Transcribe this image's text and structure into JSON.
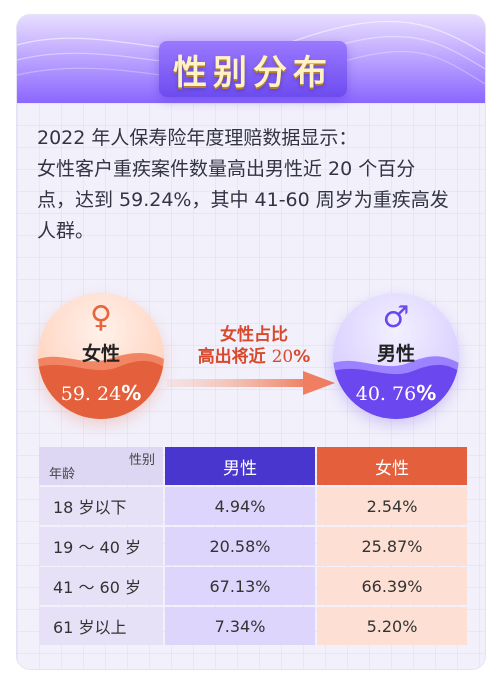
{
  "title": "性别分布",
  "intro": {
    "line1": "2022 年人保寿险年度理赔数据显示：",
    "line2": "女性客户重疾案件数量高出男性近  20  个百分",
    "line3": "点，达到 59.24%，其中 41-60 周岁为重疾高发",
    "line4": "人群。"
  },
  "female": {
    "icon": "♀",
    "label": "女性",
    "pct_num": "59. 24",
    "pct_sign": "%"
  },
  "male": {
    "icon": "♂",
    "label": "男性",
    "pct_num": "40. 76",
    "pct_sign": "%"
  },
  "comparison": {
    "line1": "女性占比",
    "line2_text": "高出将近",
    "line2_num": "20",
    "line2_sign": "%"
  },
  "table": {
    "corner_top": "性别",
    "corner_bottom": "年龄",
    "col_male": "男性",
    "col_female": "女性",
    "rows": [
      {
        "age": "18 岁以下",
        "male": "4.94%",
        "female": "2.54%"
      },
      {
        "age": "19 ～ 40 岁",
        "male": "20.58%",
        "female": "25.87%"
      },
      {
        "age": "41 ～ 60 岁",
        "male": "67.13%",
        "female": "66.39%"
      },
      {
        "age": "61 岁以上",
        "male": "7.34%",
        "female": "5.20%"
      }
    ]
  },
  "colors": {
    "female": "#e4603c",
    "male": "#4936cf",
    "accent": "#6d4cf0"
  }
}
